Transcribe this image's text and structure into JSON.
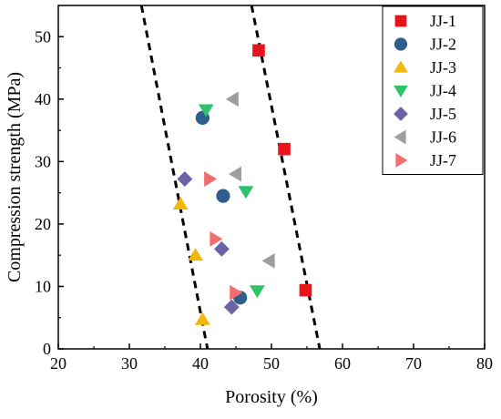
{
  "chart_data": {
    "type": "scatter",
    "xlabel": "Porosity (%)",
    "ylabel": "Compression strength (MPa)",
    "xlim": [
      20,
      80
    ],
    "ylim": [
      0,
      55
    ],
    "xticks": [
      "20",
      "30",
      "40",
      "50",
      "60",
      "70",
      "80"
    ],
    "yticks": [
      "0",
      "10",
      "20",
      "30",
      "40",
      "50"
    ],
    "grid": false,
    "legend_position": "top-right",
    "series": [
      {
        "name": "JJ-1",
        "marker": "square",
        "color": "#e8131b",
        "points": [
          {
            "x": 48.2,
            "y": 47.8
          },
          {
            "x": 51.8,
            "y": 32.0
          },
          {
            "x": 54.8,
            "y": 9.4
          }
        ]
      },
      {
        "name": "JJ-2",
        "marker": "circle",
        "color": "#2e5e8c",
        "points": [
          {
            "x": 40.3,
            "y": 37.0
          },
          {
            "x": 43.2,
            "y": 24.5
          },
          {
            "x": 45.6,
            "y": 8.2
          }
        ]
      },
      {
        "name": "JJ-3",
        "marker": "triangle-up",
        "color": "#f2b807",
        "points": [
          {
            "x": 37.2,
            "y": 23.2
          },
          {
            "x": 39.3,
            "y": 15.0
          },
          {
            "x": 40.3,
            "y": 4.7
          }
        ]
      },
      {
        "name": "JJ-4",
        "marker": "triangle-down",
        "color": "#2fc26a",
        "points": [
          {
            "x": 40.8,
            "y": 38.3
          },
          {
            "x": 46.4,
            "y": 25.2
          },
          {
            "x": 48.0,
            "y": 9.3
          }
        ]
      },
      {
        "name": "JJ-5",
        "marker": "diamond",
        "color": "#6a64a6",
        "points": [
          {
            "x": 37.8,
            "y": 27.2
          },
          {
            "x": 43.0,
            "y": 16.0
          },
          {
            "x": 44.4,
            "y": 6.7
          }
        ]
      },
      {
        "name": "JJ-6",
        "marker": "triangle-left",
        "color": "#9e9e9e",
        "points": [
          {
            "x": 44.6,
            "y": 40.0
          },
          {
            "x": 45.0,
            "y": 28.0
          },
          {
            "x": 49.7,
            "y": 14.1
          }
        ]
      },
      {
        "name": "JJ-7",
        "marker": "triangle-right",
        "color": "#f26e6e",
        "points": [
          {
            "x": 41.3,
            "y": 27.2
          },
          {
            "x": 42.1,
            "y": 17.6
          },
          {
            "x": 44.9,
            "y": 9.0
          }
        ]
      }
    ],
    "trend_lines": [
      {
        "style": "dashed",
        "color": "#000000",
        "from": {
          "x": 31.7,
          "y": 55
        },
        "to": {
          "x": 41.0,
          "y": 0
        }
      },
      {
        "style": "dashed",
        "color": "#000000",
        "from": {
          "x": 47.2,
          "y": 55
        },
        "to": {
          "x": 56.8,
          "y": 0
        }
      }
    ]
  }
}
